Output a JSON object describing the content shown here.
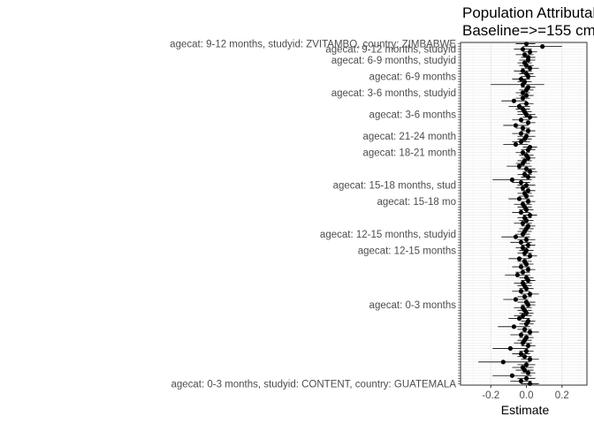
{
  "chart_data": {
    "type": "scatter",
    "title": "Population Attributable Risk",
    "subtitle": "Baseline=>=155 cm",
    "xlabel": "Estimate",
    "ylabel": "",
    "xlim": [
      -0.37,
      0.34
    ],
    "xticks": [
      -0.2,
      0.0,
      0.2
    ],
    "xtick_labels": [
      "-0.2",
      "0.0",
      "0.2"
    ],
    "grid": true,
    "errorbars": true,
    "point_color": "#000000",
    "visible_labels": [
      "agecat: 9-12 months, studyid: ZVITAMBO, country: ZIMBABWE",
      "agecat: 9-12 months, studyid",
      "agecat: 6-9 months, studyid",
      "agecat: 6-9 months",
      "agecat: 3-6 months, studyid",
      "agecat: 3-6 months",
      "agecat: 21-24 month",
      "agecat: 18-21 month",
      "agecat: 15-18 months, stud",
      "agecat: 15-18 mo",
      "agecat: 12-15 months, studyid",
      "agecat: 12-15 months",
      "agecat: 0-3 months",
      "agecat: 0-3 months, studyid: CONTENT, country: GUATEMALA"
    ],
    "series": [
      {
        "values": [
          0.0,
          0.09,
          -0.02,
          0.02,
          -0.01,
          0.01,
          0.01,
          -0.01,
          0.0,
          0.02,
          -0.02,
          0.0,
          0.01,
          -0.03,
          -0.01,
          -0.02,
          0.01,
          0.0,
          -0.02,
          0.0,
          -0.02,
          -0.07,
          0.0,
          -0.04,
          -0.02,
          -0.01,
          0.0,
          0.02,
          -0.03,
          0.01,
          -0.06,
          -0.02,
          0.01,
          -0.03,
          0.0,
          -0.01,
          -0.03,
          -0.06,
          0.02,
          0.01,
          -0.02,
          0.0,
          0.01,
          -0.01,
          -0.02,
          -0.04,
          0.0,
          0.02,
          -0.01,
          0.01,
          -0.08,
          -0.03,
          0.0,
          -0.02,
          0.01,
          -0.01,
          0.0,
          -0.04,
          0.01,
          -0.02,
          -0.01,
          0.0,
          -0.03,
          0.02,
          -0.01,
          0.0,
          -0.02,
          0.01,
          0.0,
          -0.01,
          -0.02,
          -0.06,
          0.0,
          -0.03,
          0.01,
          -0.02,
          0.0,
          -0.01,
          0.02,
          -0.04,
          -0.01,
          0.0,
          -0.03,
          0.01,
          -0.02,
          -0.05,
          0.0,
          0.01,
          -0.02,
          -0.01,
          0.0,
          -0.03,
          0.02,
          -0.01,
          -0.06,
          0.0,
          0.01,
          -0.02,
          -0.01,
          0.0,
          -0.02,
          -0.04,
          0.01,
          0.0,
          -0.07,
          -0.01,
          0.02,
          -0.03,
          0.0,
          -0.01,
          -0.02,
          0.01,
          -0.09,
          0.0,
          -0.03,
          -0.01,
          0.02,
          -0.13,
          0.0,
          -0.02,
          -0.01,
          0.01,
          -0.08,
          0.0,
          -0.03,
          0.02
        ],
        "ci_low": [
          -0.06,
          -0.02,
          -0.07,
          -0.02,
          -0.06,
          -0.03,
          -0.04,
          -0.05,
          -0.04,
          -0.03,
          -0.07,
          -0.04,
          -0.03,
          -0.08,
          -0.05,
          -0.2,
          -0.03,
          -0.04,
          -0.06,
          -0.04,
          -0.06,
          -0.14,
          -0.04,
          -0.1,
          -0.06,
          -0.05,
          -0.05,
          -0.02,
          -0.08,
          -0.03,
          -0.13,
          -0.06,
          -0.03,
          -0.08,
          -0.05,
          -0.05,
          -0.08,
          -0.13,
          -0.02,
          -0.03,
          -0.06,
          -0.04,
          -0.03,
          -0.05,
          -0.06,
          -0.11,
          -0.05,
          -0.02,
          -0.05,
          -0.03,
          -0.19,
          -0.08,
          -0.05,
          -0.06,
          -0.03,
          -0.05,
          -0.04,
          -0.1,
          -0.03,
          -0.07,
          -0.05,
          -0.04,
          -0.08,
          -0.02,
          -0.05,
          -0.04,
          -0.07,
          -0.03,
          -0.04,
          -0.05,
          -0.06,
          -0.14,
          -0.05,
          -0.09,
          -0.03,
          -0.06,
          -0.04,
          -0.05,
          -0.02,
          -0.1,
          -0.05,
          -0.04,
          -0.08,
          -0.03,
          -0.06,
          -0.12,
          -0.04,
          -0.03,
          -0.07,
          -0.05,
          -0.04,
          -0.08,
          -0.03,
          -0.05,
          -0.13,
          -0.05,
          -0.03,
          -0.07,
          -0.05,
          -0.04,
          -0.07,
          -0.1,
          -0.03,
          -0.04,
          -0.16,
          -0.05,
          -0.03,
          -0.09,
          -0.04,
          -0.05,
          -0.07,
          -0.03,
          -0.19,
          -0.04,
          -0.08,
          -0.05,
          -0.03,
          -0.27,
          -0.05,
          -0.08,
          -0.06,
          -0.03,
          -0.19,
          -0.05,
          -0.09,
          -0.03
        ],
        "ci_high": [
          0.05,
          0.2,
          0.03,
          0.06,
          0.04,
          0.05,
          0.05,
          0.03,
          0.04,
          0.07,
          0.03,
          0.04,
          0.05,
          0.02,
          0.03,
          0.1,
          0.05,
          0.04,
          0.02,
          0.04,
          0.02,
          0.0,
          0.04,
          0.02,
          0.02,
          0.03,
          0.05,
          0.06,
          0.02,
          0.05,
          0.01,
          0.02,
          0.05,
          0.02,
          0.05,
          0.03,
          0.02,
          0.01,
          0.06,
          0.05,
          0.02,
          0.04,
          0.05,
          0.03,
          0.02,
          0.03,
          0.05,
          0.06,
          0.03,
          0.05,
          0.03,
          0.02,
          0.05,
          0.02,
          0.05,
          0.03,
          0.04,
          0.02,
          0.05,
          0.03,
          0.03,
          0.04,
          0.02,
          0.06,
          0.03,
          0.04,
          0.03,
          0.05,
          0.04,
          0.03,
          0.02,
          0.02,
          0.05,
          0.03,
          0.05,
          0.02,
          0.04,
          0.03,
          0.06,
          0.02,
          0.03,
          0.04,
          0.02,
          0.05,
          0.02,
          0.02,
          0.04,
          0.05,
          0.03,
          0.03,
          0.04,
          0.02,
          0.07,
          0.03,
          0.01,
          0.05,
          0.05,
          0.03,
          0.03,
          0.04,
          0.03,
          0.02,
          0.05,
          0.04,
          0.02,
          0.03,
          0.07,
          0.03,
          0.04,
          0.03,
          0.03,
          0.05,
          0.01,
          0.04,
          0.02,
          0.03,
          0.07,
          0.02,
          0.05,
          0.04,
          0.04,
          0.05,
          0.03,
          0.05,
          0.03,
          0.07
        ]
      }
    ]
  }
}
